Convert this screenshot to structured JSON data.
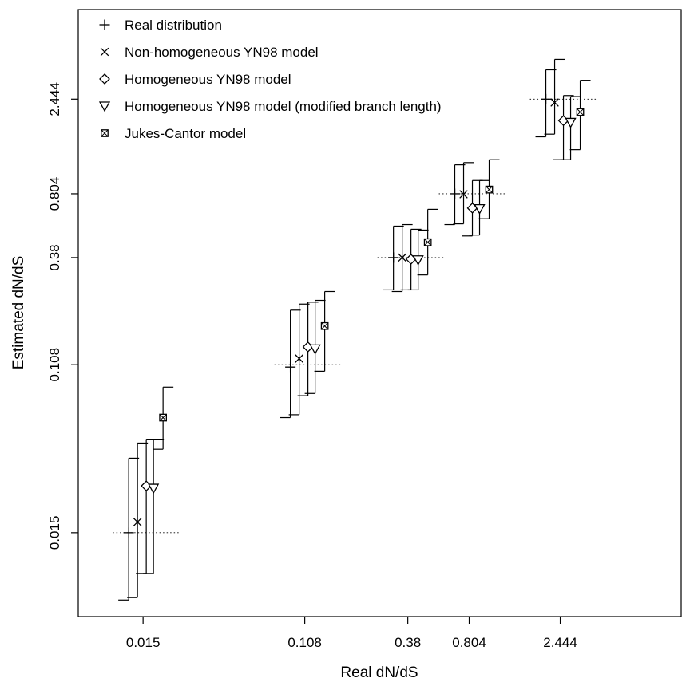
{
  "chart_data": {
    "type": "scatter",
    "title": "",
    "xlabel": "Real dN/dS",
    "ylabel": "Estimated dN/dS",
    "x_scale": "log",
    "y_scale": "log",
    "x_ticks": [
      0.015,
      0.108,
      0.38,
      0.804,
      2.444
    ],
    "x_tick_labels": [
      "0.015",
      "0.108",
      "0.38",
      "0.804",
      "2.444"
    ],
    "y_ticks": [
      0.015,
      0.108,
      0.38,
      0.804,
      2.444
    ],
    "y_tick_labels": [
      "0.015",
      "0.108",
      "0.38",
      "0.804",
      "2.444"
    ],
    "xlim": [
      0.0068,
      10.7
    ],
    "ylim": [
      0.0056,
      7.0
    ],
    "grid": false,
    "legend_position": "top-left",
    "reference_lines": "dotted horizontal line at the real value for each group",
    "groups": [
      0.015,
      0.108,
      0.38,
      0.804,
      2.444
    ],
    "series": [
      {
        "name": "Real distribution",
        "marker": "plus",
        "points": [
          {
            "real": 0.015,
            "est": 0.015,
            "lo": 0.0068,
            "hi": 0.036
          },
          {
            "real": 0.108,
            "est": 0.105,
            "lo": 0.058,
            "hi": 0.205
          },
          {
            "real": 0.38,
            "est": 0.38,
            "lo": 0.26,
            "hi": 0.55
          },
          {
            "real": 0.804,
            "est": 0.804,
            "lo": 0.56,
            "hi": 1.13
          },
          {
            "real": 2.444,
            "est": 2.444,
            "lo": 1.57,
            "hi": 3.45
          }
        ]
      },
      {
        "name": "Non-homogeneous YN98 model",
        "marker": "cross",
        "points": [
          {
            "real": 0.015,
            "est": 0.017,
            "lo": 0.007,
            "hi": 0.043
          },
          {
            "real": 0.108,
            "est": 0.116,
            "lo": 0.06,
            "hi": 0.22
          },
          {
            "real": 0.38,
            "est": 0.38,
            "lo": 0.255,
            "hi": 0.56
          },
          {
            "real": 0.804,
            "est": 0.8,
            "lo": 0.565,
            "hi": 1.16
          },
          {
            "real": 2.444,
            "est": 2.35,
            "lo": 1.62,
            "hi": 3.9
          }
        ]
      },
      {
        "name": "Homogeneous YN98 model",
        "marker": "diamond",
        "points": [
          {
            "real": 0.015,
            "est": 0.026,
            "lo": 0.0093,
            "hi": 0.045
          },
          {
            "real": 0.108,
            "est": 0.133,
            "lo": 0.075,
            "hi": 0.225
          },
          {
            "real": 0.38,
            "est": 0.373,
            "lo": 0.26,
            "hi": 0.53
          },
          {
            "real": 0.804,
            "est": 0.68,
            "lo": 0.49,
            "hi": 0.94
          },
          {
            "real": 2.444,
            "est": 1.9,
            "lo": 1.2,
            "hi": 2.55
          }
        ]
      },
      {
        "name": "Homogeneous YN98 model (modified branch length)",
        "marker": "triangle-down",
        "points": [
          {
            "real": 0.015,
            "est": 0.0253,
            "lo": 0.0093,
            "hi": 0.045
          },
          {
            "real": 0.108,
            "est": 0.13,
            "lo": 0.077,
            "hi": 0.23
          },
          {
            "real": 0.38,
            "est": 0.37,
            "lo": 0.26,
            "hi": 0.525
          },
          {
            "real": 0.804,
            "est": 0.675,
            "lo": 0.495,
            "hi": 0.94
          },
          {
            "real": 2.444,
            "est": 1.86,
            "lo": 1.2,
            "hi": 2.52
          }
        ]
      },
      {
        "name": "Jukes-Cantor model",
        "marker": "boxed-cross",
        "points": [
          {
            "real": 0.015,
            "est": 0.058,
            "lo": 0.04,
            "hi": 0.083
          },
          {
            "real": 0.108,
            "est": 0.17,
            "lo": 0.1,
            "hi": 0.255
          },
          {
            "real": 0.38,
            "est": 0.455,
            "lo": 0.31,
            "hi": 0.67
          },
          {
            "real": 0.804,
            "est": 0.845,
            "lo": 0.6,
            "hi": 1.2
          },
          {
            "real": 2.444,
            "est": 2.1,
            "lo": 1.35,
            "hi": 3.05
          }
        ]
      }
    ]
  }
}
